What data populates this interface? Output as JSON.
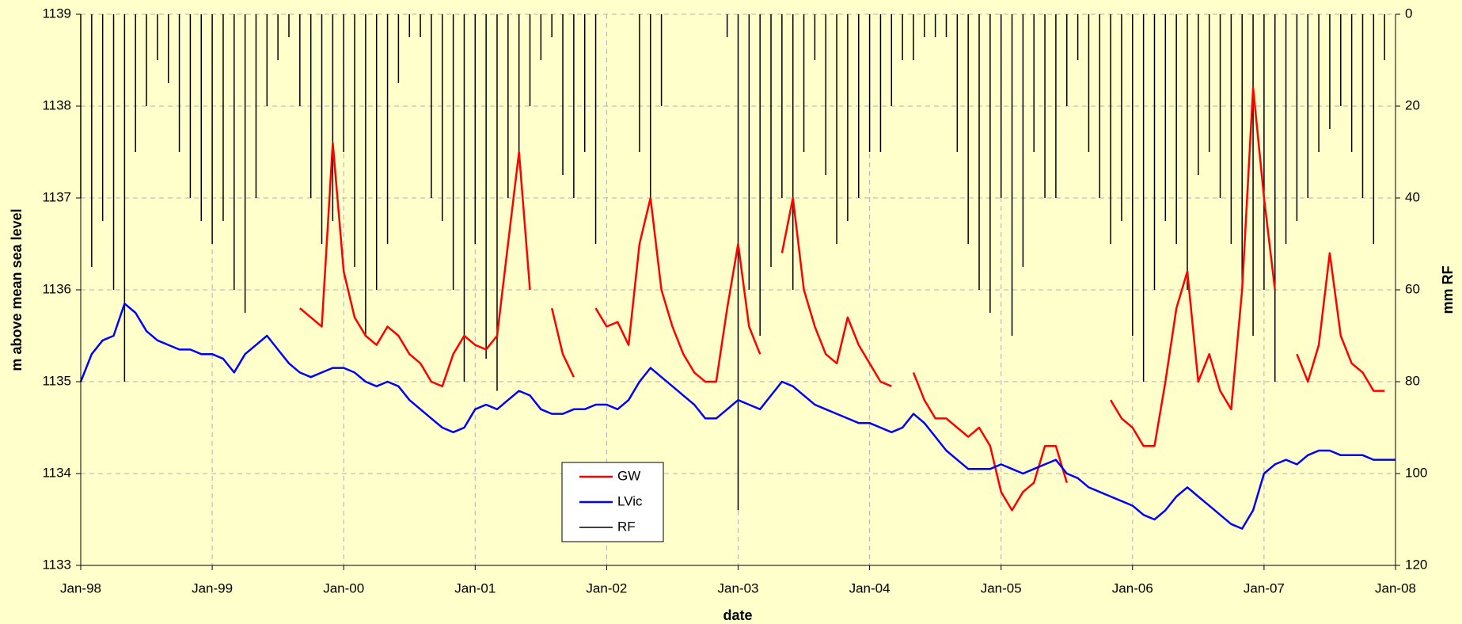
{
  "chart_data": {
    "type": "line",
    "xlabel": "date",
    "ylabel": "m above mean sea level",
    "y2label": "mm RF",
    "grid": true,
    "legend": "bottom-center",
    "x": [
      "1998-01",
      "1998-02",
      "1998-03",
      "1998-04",
      "1998-05",
      "1998-06",
      "1998-07",
      "1998-08",
      "1998-09",
      "1998-10",
      "1998-11",
      "1998-12",
      "1999-01",
      "1999-02",
      "1999-03",
      "1999-04",
      "1999-05",
      "1999-06",
      "1999-07",
      "1999-08",
      "1999-09",
      "1999-10",
      "1999-11",
      "1999-12",
      "2000-01",
      "2000-02",
      "2000-03",
      "2000-04",
      "2000-05",
      "2000-06",
      "2000-07",
      "2000-08",
      "2000-09",
      "2000-10",
      "2000-11",
      "2000-12",
      "2001-01",
      "2001-02",
      "2001-03",
      "2001-04",
      "2001-05",
      "2001-06",
      "2001-07",
      "2001-08",
      "2001-09",
      "2001-10",
      "2001-11",
      "2001-12",
      "2002-01",
      "2002-02",
      "2002-03",
      "2002-04",
      "2002-05",
      "2002-06",
      "2002-07",
      "2002-08",
      "2002-09",
      "2002-10",
      "2002-11",
      "2002-12",
      "2003-01",
      "2003-02",
      "2003-03",
      "2003-04",
      "2003-05",
      "2003-06",
      "2003-07",
      "2003-08",
      "2003-09",
      "2003-10",
      "2003-11",
      "2003-12",
      "2004-01",
      "2004-02",
      "2004-03",
      "2004-04",
      "2004-05",
      "2004-06",
      "2004-07",
      "2004-08",
      "2004-09",
      "2004-10",
      "2004-11",
      "2004-12",
      "2005-01",
      "2005-02",
      "2005-03",
      "2005-04",
      "2005-05",
      "2005-06",
      "2005-07",
      "2005-08",
      "2005-09",
      "2005-10",
      "2005-11",
      "2005-12",
      "2006-01",
      "2006-02",
      "2006-03",
      "2006-04",
      "2006-05",
      "2006-06",
      "2006-07",
      "2006-08",
      "2006-09",
      "2006-10",
      "2006-11",
      "2006-12",
      "2007-01",
      "2007-02",
      "2007-03",
      "2007-04",
      "2007-05",
      "2007-06",
      "2007-07",
      "2007-08",
      "2007-09",
      "2007-10",
      "2007-11",
      "2007-12",
      "2008-01"
    ],
    "xlim": [
      "1998-01",
      "2008-01"
    ],
    "xticks": [
      {
        "value": "1998-01",
        "label": "Jan-98"
      },
      {
        "value": "1999-01",
        "label": "Jan-99"
      },
      {
        "value": "2000-01",
        "label": "Jan-00"
      },
      {
        "value": "2001-01",
        "label": "Jan-01"
      },
      {
        "value": "2002-01",
        "label": "Jan-02"
      },
      {
        "value": "2003-01",
        "label": "Jan-03"
      },
      {
        "value": "2004-01",
        "label": "Jan-04"
      },
      {
        "value": "2005-01",
        "label": "Jan-05"
      },
      {
        "value": "2006-01",
        "label": "Jan-06"
      },
      {
        "value": "2007-01",
        "label": "Jan-07"
      },
      {
        "value": "2008-01",
        "label": "Jan-08"
      }
    ],
    "ylim": [
      1133,
      1139
    ],
    "yticks": [
      1133,
      1134,
      1135,
      1136,
      1137,
      1138,
      1139
    ],
    "y2lim": [
      120,
      0
    ],
    "y2ticks": [
      0,
      20,
      40,
      60,
      80,
      100,
      120
    ],
    "series": [
      {
        "name": "GW",
        "color": "#ff0000",
        "values": [
          null,
          null,
          null,
          null,
          null,
          null,
          null,
          null,
          null,
          null,
          null,
          null,
          null,
          null,
          null,
          null,
          null,
          null,
          1136.2,
          null,
          1135.8,
          1135.7,
          1135.6,
          1137.6,
          1136.2,
          1135.7,
          1135.5,
          1135.4,
          1135.6,
          1135.5,
          1135.3,
          1135.2,
          1135.0,
          1134.95,
          1135.3,
          1135.5,
          1135.4,
          1135.35,
          1135.5,
          1136.5,
          1137.5,
          1136.0,
          null,
          1135.8,
          1135.3,
          1135.05,
          null,
          1135.8,
          1135.6,
          1135.65,
          1135.4,
          1136.5,
          1137.0,
          1136.0,
          1135.6,
          1135.3,
          1135.1,
          1135.0,
          1135.0,
          1135.8,
          1136.5,
          1135.6,
          1135.3,
          null,
          1136.4,
          1137.0,
          1136.0,
          1135.6,
          1135.3,
          1135.2,
          1135.7,
          1135.4,
          1135.2,
          1135.0,
          1134.95,
          null,
          1135.1,
          1134.8,
          1134.6,
          1134.6,
          1134.5,
          1134.4,
          1134.5,
          1134.3,
          1133.8,
          1133.6,
          1133.8,
          1133.9,
          1134.3,
          1134.3,
          1133.9,
          null,
          1135.2,
          null,
          1134.8,
          1134.6,
          1134.5,
          1134.3,
          1134.3,
          1135.0,
          1135.8,
          1136.2,
          1135.0,
          1135.3,
          1134.9,
          1134.7,
          1136.0,
          1138.2,
          1137.0,
          1136.0,
          null,
          1135.3,
          1135.0,
          1135.4,
          1136.4,
          1135.5,
          1135.2,
          1135.1,
          1134.9,
          1134.9,
          null
        ]
      },
      {
        "name": "LVic",
        "color": "#0000ff",
        "values": [
          1135.0,
          1135.3,
          1135.45,
          1135.5,
          1135.85,
          1135.75,
          1135.55,
          1135.45,
          1135.4,
          1135.35,
          1135.35,
          1135.3,
          1135.3,
          1135.25,
          1135.1,
          1135.3,
          1135.4,
          1135.5,
          1135.35,
          1135.2,
          1135.1,
          1135.05,
          1135.1,
          1135.15,
          1135.15,
          1135.1,
          1135.0,
          1134.95,
          1135.0,
          1134.95,
          1134.8,
          1134.7,
          1134.6,
          1134.5,
          1134.45,
          1134.5,
          1134.7,
          1134.75,
          1134.7,
          1134.8,
          1134.9,
          1134.85,
          1134.7,
          1134.65,
          1134.65,
          1134.7,
          1134.7,
          1134.75,
          1134.75,
          1134.7,
          1134.8,
          1135.0,
          1135.15,
          1135.05,
          1134.95,
          1134.85,
          1134.75,
          1134.6,
          1134.6,
          1134.7,
          1134.8,
          1134.75,
          1134.7,
          1134.85,
          1135.0,
          1134.95,
          1134.85,
          1134.75,
          1134.7,
          1134.65,
          1134.6,
          1134.55,
          1134.55,
          1134.5,
          1134.45,
          1134.5,
          1134.65,
          1134.55,
          1134.4,
          1134.25,
          1134.15,
          1134.05,
          1134.05,
          1134.05,
          1134.1,
          1134.05,
          1134.0,
          1134.05,
          1134.1,
          1134.15,
          1134.0,
          1133.95,
          1133.85,
          1133.8,
          1133.75,
          1133.7,
          1133.65,
          1133.55,
          1133.5,
          1133.6,
          1133.75,
          1133.85,
          1133.75,
          1133.65,
          1133.55,
          1133.45,
          1133.4,
          1133.6,
          1134.0,
          1134.1,
          1134.15,
          1134.1,
          1134.2,
          1134.25,
          1134.25,
          1134.2,
          1134.2,
          1134.2,
          1134.15,
          1134.15,
          1134.15
        ]
      },
      {
        "name": "RF",
        "color": "#000000",
        "axis": "y2",
        "values": [
          40,
          55,
          45,
          60,
          80,
          30,
          20,
          10,
          15,
          30,
          40,
          45,
          50,
          45,
          60,
          65,
          40,
          20,
          10,
          5,
          20,
          40,
          50,
          45,
          30,
          55,
          70,
          60,
          50,
          15,
          5,
          5,
          40,
          45,
          60,
          80,
          50,
          75,
          82,
          40,
          30,
          20,
          10,
          5,
          35,
          40,
          30,
          50,
          0,
          0,
          0,
          30,
          40,
          20,
          0,
          0,
          0,
          0,
          0,
          5,
          108,
          60,
          70,
          55,
          40,
          60,
          30,
          10,
          35,
          50,
          45,
          40,
          30,
          30,
          20,
          10,
          10,
          5,
          5,
          5,
          30,
          50,
          60,
          65,
          40,
          70,
          55,
          30,
          40,
          40,
          20,
          10,
          30,
          40,
          50,
          45,
          70,
          80,
          60,
          45,
          50,
          60,
          35,
          30,
          40,
          50,
          60,
          70,
          60,
          80,
          50,
          45,
          40,
          30,
          25,
          20,
          30,
          40,
          50,
          10,
          0
        ]
      }
    ]
  }
}
